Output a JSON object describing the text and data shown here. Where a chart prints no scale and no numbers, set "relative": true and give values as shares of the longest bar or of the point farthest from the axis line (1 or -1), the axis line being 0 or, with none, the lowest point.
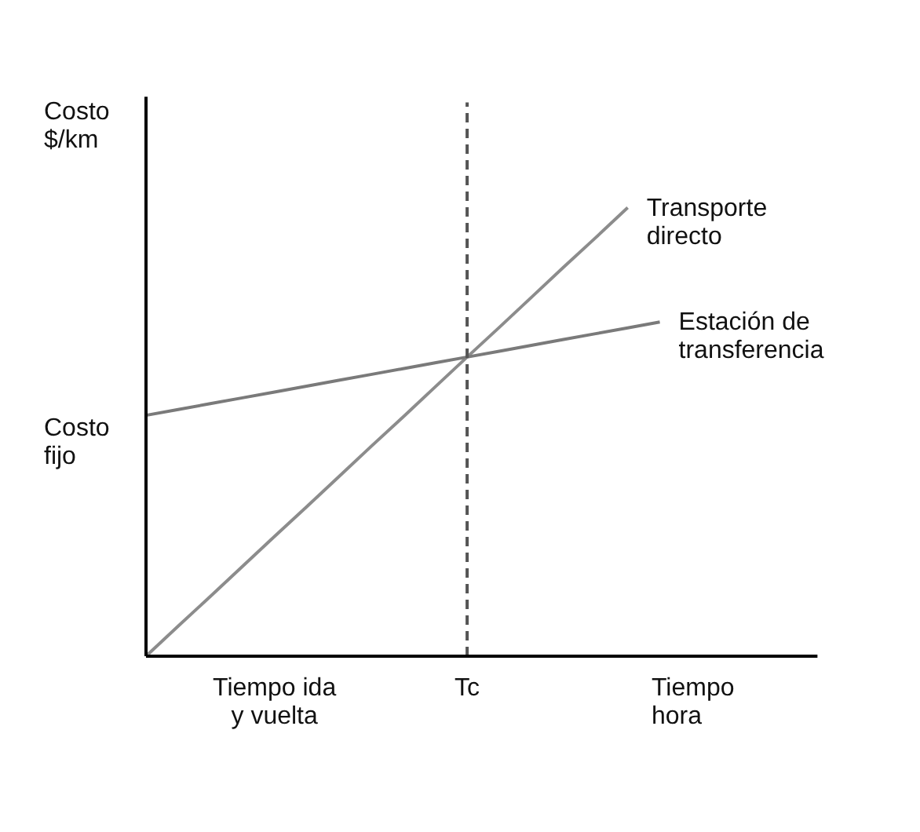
{
  "chart_data": {
    "type": "line",
    "relative": true,
    "xlabel": "Tiempo\nhora",
    "ylabel": "Costo\n$/km",
    "categories": [
      null,
      null,
      null,
      null,
      "Tiempo ida\ny vuelta",
      null,
      null,
      null,
      null,
      null,
      "Tc",
      null,
      null,
      null,
      null,
      null,
      null
    ],
    "series": [
      {
        "name": "Transporte\ndirecto",
        "color": "#8c8c8c",
        "values": [
          0,
          0.067,
          0.133,
          0.2,
          0.267,
          0.333,
          0.4,
          0.467,
          0.533,
          0.6,
          0.667,
          0.733,
          0.8,
          0.867,
          0.933,
          1,
          null
        ]
      },
      {
        "name": "Estación de\ntransferencia",
        "color": "#7a7a7a",
        "values": [
          0.537,
          0.55,
          0.563,
          0.576,
          0.589,
          0.602,
          0.615,
          0.628,
          0.641,
          0.654,
          0.667,
          0.68,
          0.693,
          0.706,
          0.719,
          0.732,
          0.745
        ]
      }
    ],
    "ref_lines": [
      {
        "axis": "x",
        "value": "Tc",
        "label": null,
        "color": "#555555",
        "line_style": "dashed"
      }
    ],
    "annotations": [
      "Costo\nfijo"
    ],
    "legend": false,
    "marker": "none",
    "line_style": "solid",
    "tick_labels": "x"
  }
}
